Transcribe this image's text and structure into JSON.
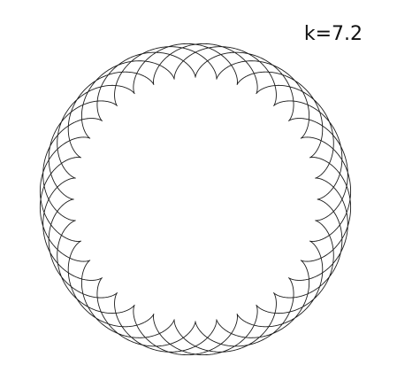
{
  "label": {
    "k_text": "k=7.2"
  },
  "curve": {
    "type": "epicycloid",
    "k": 7.2,
    "stroke_color": "#1a1a1a",
    "background_color": "#ffffff"
  }
}
